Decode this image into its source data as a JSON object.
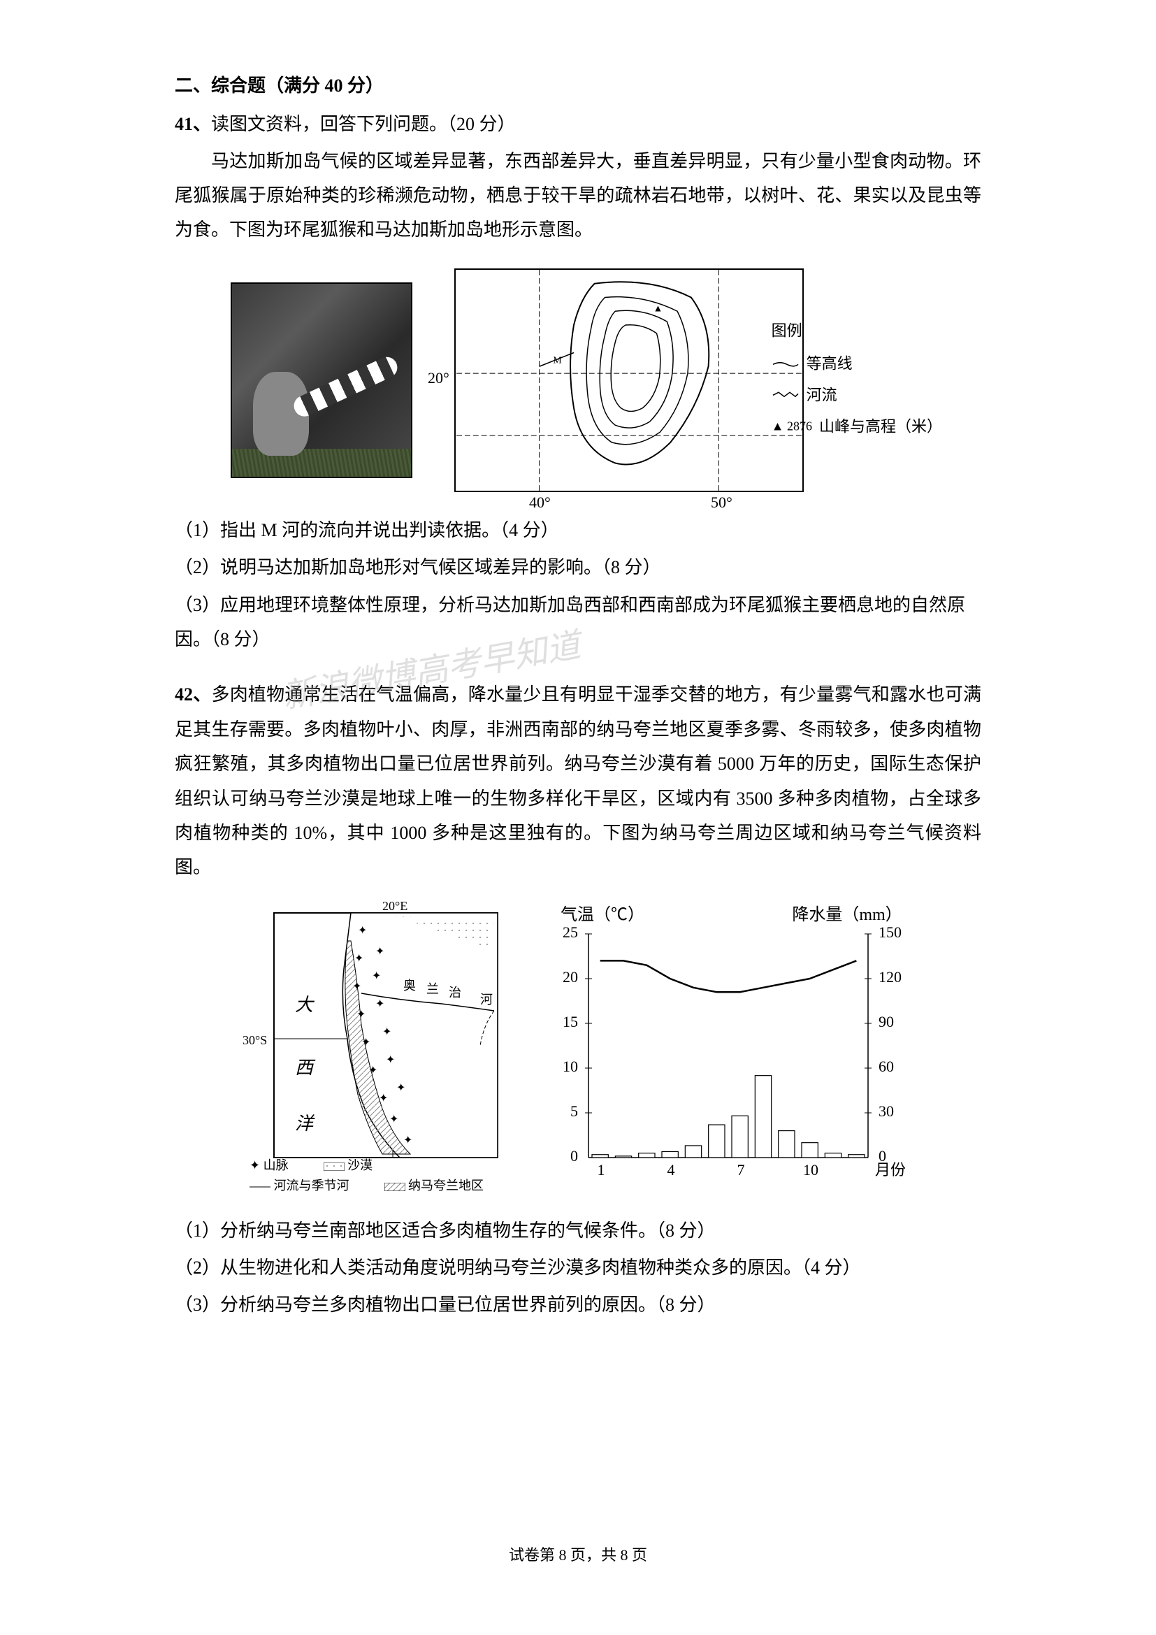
{
  "section": {
    "title": "二、综合题（满分 40 分）"
  },
  "q41": {
    "number": "41、",
    "header": "读图文资料，回答下列问题。（20 分）",
    "paragraph": "马达加斯加岛气候的区域差异显著，东西部差异大，垂直差异明显，只有少量小型食肉动物。环尾狐猴属于原始种类的珍稀濒危动物，栖息于较干旱的疏林岩石地带，以树叶、花、果实以及昆虫等为食。下图为环尾狐猴和马达加斯加岛地形示意图。",
    "sub1": "（1）指出 M 河的流向并说出判读依据。（4 分）",
    "sub2": "（2）说明马达加斯加岛地形对气候区域差异的影响。（8 分）",
    "sub3": "（3）应用地理环境整体性原理，分析马达加斯加岛西部和西南部成为环尾狐猴主要栖息地的自然原因。（8 分）",
    "map": {
      "lat_label": "20°",
      "lon_labels": [
        "40°",
        "50°"
      ],
      "peak_label": "▲ 2876",
      "legend_title": "图例",
      "legend_contour": "等高线",
      "legend_river": "河流",
      "legend_peak": "山峰与高程（米）"
    }
  },
  "q42": {
    "number": "42、",
    "paragraph": "多肉植物通常生活在气温偏高，降水量少且有明显干湿季交替的地方，有少量雾气和露水也可满足其生存需要。多肉植物叶小、肉厚，非洲西南部的纳马夸兰地区夏季多雾、冬雨较多，使多肉植物疯狂繁殖，其多肉植物出口量已位居世界前列。纳马夸兰沙漠有着 5000 万年的历史，国际生态保护组织认可纳马夸兰沙漠是地球上唯一的生物多样化干旱区，区域内有 3500 多种多肉植物，占全球多肉植物种类的 10%，其中 1000 多种是这里独有的。下图为纳马夸兰周边区域和纳马夸兰气候资料图。",
    "sub1": "（1）分析纳马夸兰南部地区适合多肉植物生存的气候条件。（8 分）",
    "sub2": "（2）从生物进化和人类活动角度说明纳马夸兰沙漠多肉植物种类众多的原因。（4 分）",
    "sub3": "（3）分析纳马夸兰多肉植物出口量已位居世界前列的原因。（8 分）",
    "map": {
      "lat_label": "30°S",
      "lon_label": "20°E",
      "ocean_labels": [
        "大",
        "西",
        "洋"
      ],
      "river_labels": [
        "奥",
        "兰",
        "治",
        "河"
      ],
      "legend_mountain": "山脉",
      "legend_desert": "沙漠",
      "legend_river": "河流与季节河",
      "legend_area": "纳马夸兰地区"
    },
    "chart": {
      "type": "climate",
      "temp_label": "气温（℃）",
      "precip_label": "降水量（mm）",
      "x_label": "月份",
      "temp_axis": {
        "min": 0,
        "max": 25,
        "step": 5,
        "ticks": [
          "0",
          "5",
          "10",
          "15",
          "20",
          "25"
        ]
      },
      "precip_axis": {
        "min": 0,
        "max": 150,
        "step": 30,
        "ticks": [
          "0",
          "30",
          "60",
          "90",
          "120",
          "150"
        ]
      },
      "x_ticks": [
        "1",
        "4",
        "7",
        "10"
      ],
      "months": [
        1,
        2,
        3,
        4,
        5,
        6,
        7,
        8,
        9,
        10,
        11,
        12
      ],
      "temperature": [
        22,
        22,
        21.5,
        20,
        19,
        18.5,
        18.5,
        19,
        19.5,
        20,
        21,
        22
      ],
      "precipitation": [
        2,
        1,
        3,
        4,
        8,
        22,
        28,
        55,
        18,
        10,
        3,
        2
      ],
      "temp_color": "#000000",
      "bar_color": "#ffffff",
      "bar_border": "#000000",
      "grid_color": "#e0e0e0",
      "background_color": "#ffffff",
      "title_fontsize": 24,
      "axis_fontsize": 22
    }
  },
  "watermark": "新浪微博高考早知道",
  "footer": {
    "text": "试卷第 8 页，共 8 页"
  }
}
